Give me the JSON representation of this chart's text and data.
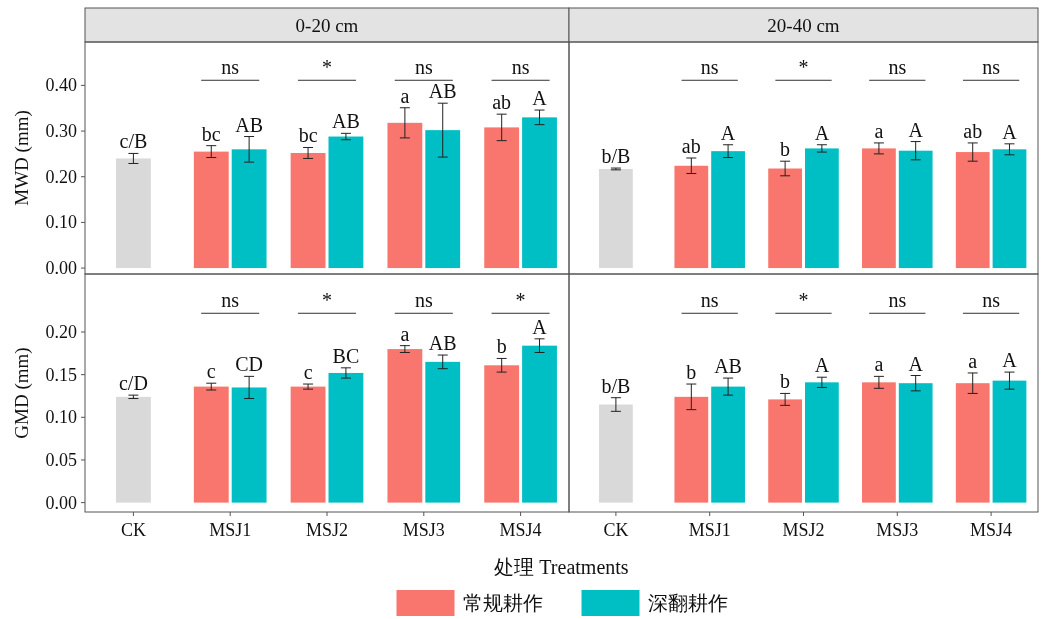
{
  "chart_data": [
    {
      "type": "bar",
      "title": "0-20 cm",
      "ylabel": "MWD (mm)",
      "legend": "bottom",
      "categories": [
        "CK",
        "MSJ1",
        "MSJ2",
        "MSJ3",
        "MSJ4"
      ],
      "ylim": [
        -0.013,
        0.495
      ],
      "yticks": [
        {
          "value": 0,
          "label": "0.00"
        },
        {
          "value": 0.1,
          "label": "0.10"
        },
        {
          "value": 0.2,
          "label": "0.20"
        },
        {
          "value": 0.3,
          "label": "0.30"
        },
        {
          "value": 0.4,
          "label": "0.40"
        }
      ],
      "tick_labels": "y",
      "series": [
        {
          "color": "#d9d9d9",
          "values": [
            0.24,
            null,
            null,
            null,
            null
          ],
          "errors": [
            0.011,
            null,
            null,
            null,
            null
          ],
          "value_labels": [
            "c/B",
            null,
            null,
            null,
            null
          ]
        },
        {
          "name": "常规耕作",
          "color": "#f8766d",
          "values": [
            null,
            0.255,
            0.252,
            0.318,
            0.308
          ],
          "errors": [
            null,
            0.013,
            0.012,
            0.033,
            0.029
          ],
          "value_labels": [
            null,
            "bc",
            "bc",
            "a",
            "ab"
          ]
        },
        {
          "name": "深翻耕作",
          "color": "#00bfc4",
          "values": [
            null,
            0.26,
            0.288,
            0.302,
            0.33
          ],
          "errors": [
            null,
            0.028,
            0.007,
            0.059,
            0.016
          ],
          "value_labels": [
            null,
            "AB",
            "AB",
            "AB",
            "A"
          ]
        }
      ],
      "annotations": [
        "ns",
        "*",
        "ns",
        "ns"
      ]
    },
    {
      "type": "bar",
      "title": "20-40 cm",
      "categories": [
        "CK",
        "MSJ1",
        "MSJ2",
        "MSJ3",
        "MSJ4"
      ],
      "ylim": [
        -0.013,
        0.495
      ],
      "tick_labels": false,
      "series": [
        {
          "color": "#d9d9d9",
          "values": [
            0.217,
            null,
            null,
            null,
            null
          ],
          "errors": [
            0.002,
            null,
            null,
            null,
            null
          ],
          "value_labels": [
            "b/B",
            null,
            null,
            null,
            null
          ]
        },
        {
          "name": "常规耕作",
          "color": "#f8766d",
          "values": [
            null,
            0.224,
            0.218,
            0.262,
            0.254
          ],
          "errors": [
            null,
            0.017,
            0.016,
            0.012,
            0.02
          ],
          "value_labels": [
            null,
            "ab",
            "b",
            "a",
            "ab"
          ]
        },
        {
          "name": "深翻耕作",
          "color": "#00bfc4",
          "values": [
            null,
            0.256,
            0.262,
            0.257,
            0.26
          ],
          "errors": [
            null,
            0.014,
            0.008,
            0.02,
            0.012
          ],
          "value_labels": [
            null,
            "A",
            "A",
            "A",
            "A"
          ]
        }
      ],
      "annotations": [
        "ns",
        "*",
        "ns",
        "ns"
      ]
    },
    {
      "type": "bar",
      "ylabel": "GMD (mm)",
      "xlabel": "处理 Treatments",
      "categories": [
        "CK",
        "MSJ1",
        "MSJ2",
        "MSJ3",
        "MSJ4"
      ],
      "ylim": [
        -0.011,
        0.268
      ],
      "yticks": [
        {
          "value": 0,
          "label": "0.00"
        },
        {
          "value": 0.05,
          "label": "0.05"
        },
        {
          "value": 0.1,
          "label": "0.10"
        },
        {
          "value": 0.15,
          "label": "0.15"
        },
        {
          "value": 0.2,
          "label": "0.20"
        }
      ],
      "series": [
        {
          "color": "#d9d9d9",
          "values": [
            0.124,
            null,
            null,
            null,
            null
          ],
          "errors": [
            0.002,
            null,
            null,
            null,
            null
          ],
          "value_labels": [
            "c/D",
            null,
            null,
            null,
            null
          ]
        },
        {
          "name": "常规耕作",
          "color": "#f8766d",
          "values": [
            null,
            0.136,
            0.136,
            0.18,
            0.161
          ],
          "errors": [
            null,
            0.004,
            0.003,
            0.004,
            0.008
          ],
          "value_labels": [
            null,
            "c",
            "c",
            "a",
            "b"
          ]
        },
        {
          "name": "深翻耕作",
          "color": "#00bfc4",
          "values": [
            null,
            0.135,
            0.152,
            0.165,
            0.184
          ],
          "errors": [
            null,
            0.013,
            0.006,
            0.008,
            0.008
          ],
          "value_labels": [
            null,
            "CD",
            "BC",
            "AB",
            "A"
          ]
        }
      ],
      "annotations": [
        "ns",
        "*",
        "ns",
        "*"
      ]
    },
    {
      "type": "bar",
      "categories": [
        "CK",
        "MSJ1",
        "MSJ2",
        "MSJ3",
        "MSJ4"
      ],
      "ylim": [
        -0.011,
        0.268
      ],
      "tick_labels": "x",
      "series": [
        {
          "color": "#d9d9d9",
          "values": [
            0.115,
            null,
            null,
            null,
            null
          ],
          "errors": [
            0.008,
            null,
            null,
            null,
            null
          ],
          "value_labels": [
            "b/B",
            null,
            null,
            null,
            null
          ]
        },
        {
          "name": "常规耕作",
          "color": "#f8766d",
          "values": [
            null,
            0.124,
            0.121,
            0.141,
            0.14
          ],
          "errors": [
            null,
            0.015,
            0.007,
            0.007,
            0.012
          ],
          "value_labels": [
            null,
            "b",
            "b",
            "a",
            "a"
          ]
        },
        {
          "name": "深翻耕作",
          "color": "#00bfc4",
          "values": [
            null,
            0.136,
            0.141,
            0.14,
            0.143
          ],
          "errors": [
            null,
            0.01,
            0.006,
            0.009,
            0.01
          ],
          "value_labels": [
            null,
            "AB",
            "A",
            "A",
            "A"
          ]
        }
      ],
      "annotations": [
        "ns",
        "*",
        "ns",
        "ns"
      ]
    }
  ]
}
